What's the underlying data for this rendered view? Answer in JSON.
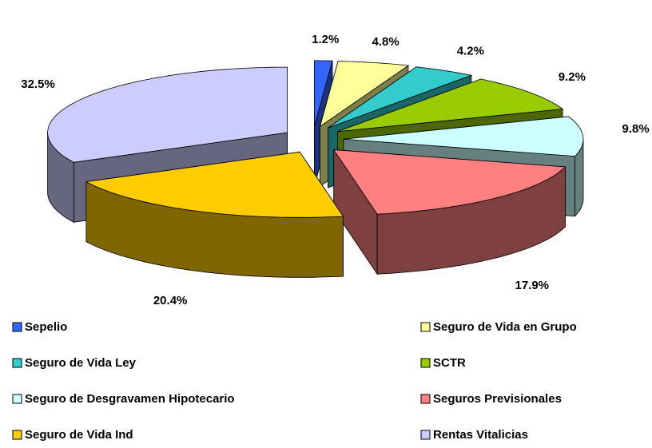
{
  "chart_data": {
    "type": "pie",
    "categories": [
      "Sepelio",
      "Seguro de Vida en Grupo",
      "Seguro de Vida Ley",
      "SCTR",
      "Seguro de Desgravamen Hipotecario",
      "Seguros Previsionales",
      "Seguro de Vida Ind",
      "Rentas Vitalicias"
    ],
    "values": [
      1.2,
      4.8,
      4.2,
      9.2,
      9.8,
      17.9,
      20.4,
      32.5
    ],
    "value_labels": [
      "1.2%",
      "4.8%",
      "4.2%",
      "9.2%",
      "9.8%",
      "17.9%",
      "20.4%",
      "32.5%"
    ],
    "colors": [
      "#3366ff",
      "#ffff99",
      "#33cccc",
      "#99cc00",
      "#ccffff",
      "#ff8080",
      "#ffcc00",
      "#ccccff"
    ],
    "legend": "bottom"
  }
}
